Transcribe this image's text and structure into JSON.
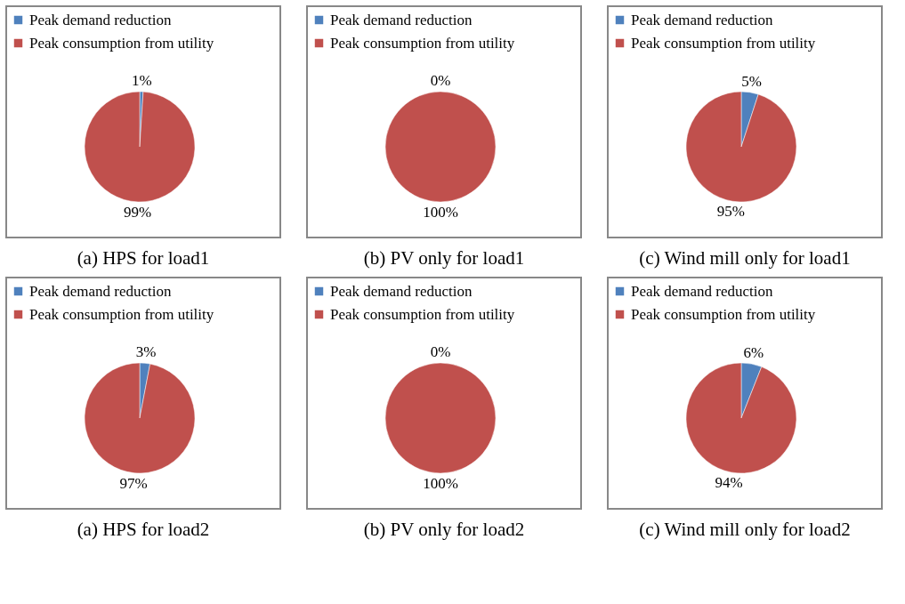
{
  "chart_data": [
    {
      "type": "pie",
      "title": "(a) HPS for load1",
      "categories": [
        "Peak demand reduction",
        "Peak consumption  from utility"
      ],
      "values": [
        1,
        99
      ],
      "colors": [
        "#4f81bd",
        "#c0504d"
      ],
      "value_labels": [
        "1%",
        "99%"
      ],
      "legend": "top"
    },
    {
      "type": "pie",
      "title": "(b) PV only for load1",
      "categories": [
        "Peak demand reduction",
        "Peak consumption  from utility"
      ],
      "values": [
        0,
        100
      ],
      "colors": [
        "#4f81bd",
        "#c0504d"
      ],
      "value_labels": [
        "0%",
        "100%"
      ],
      "legend": "top"
    },
    {
      "type": "pie",
      "title": "(c) Wind mill only for load1",
      "categories": [
        "Peak demand reduction",
        "Peak consumption  from utility"
      ],
      "values": [
        5,
        95
      ],
      "colors": [
        "#4f81bd",
        "#c0504d"
      ],
      "value_labels": [
        "5%",
        "95%"
      ],
      "legend": "top"
    },
    {
      "type": "pie",
      "title": "(a) HPS for load2",
      "categories": [
        "Peak demand reduction",
        "Peak consumption  from utility"
      ],
      "values": [
        3,
        97
      ],
      "colors": [
        "#4f81bd",
        "#c0504d"
      ],
      "value_labels": [
        "3%",
        "97%"
      ],
      "legend": "top"
    },
    {
      "type": "pie",
      "title": "(b) PV only for load2",
      "categories": [
        "Peak demand reduction",
        "Peak consumption  from utility"
      ],
      "values": [
        0,
        100
      ],
      "colors": [
        "#4f81bd",
        "#c0504d"
      ],
      "value_labels": [
        "0%",
        "100%"
      ],
      "legend": "top"
    },
    {
      "type": "pie",
      "title": "(c) Wind mill only for load2",
      "categories": [
        "Peak demand reduction",
        "Peak consumption  from utility"
      ],
      "values": [
        6,
        94
      ],
      "colors": [
        "#4f81bd",
        "#c0504d"
      ],
      "value_labels": [
        "6%",
        "94%"
      ],
      "legend": "top"
    }
  ]
}
